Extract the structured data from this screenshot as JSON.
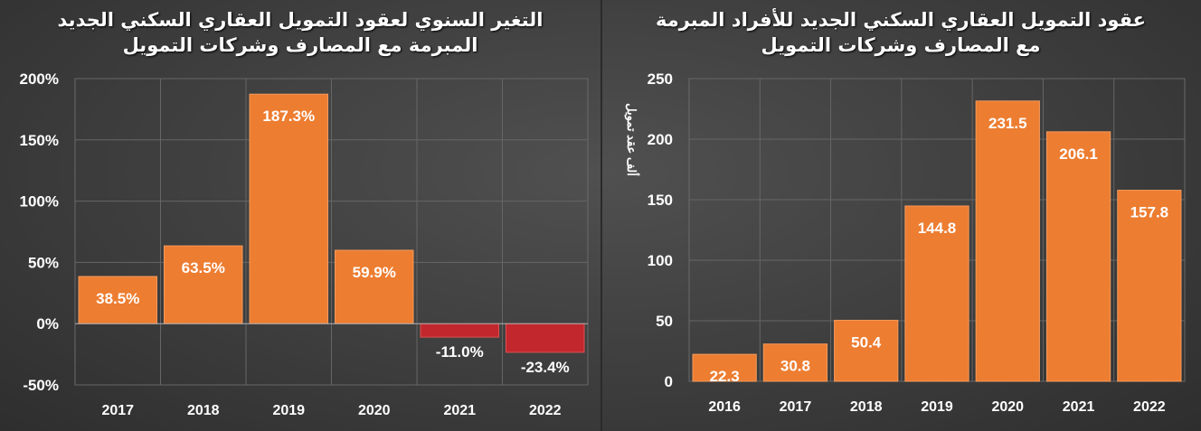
{
  "chart_data": [
    {
      "type": "bar",
      "title": "التغير السنوي لعقود التمويل العقاري السكني الجديد المبرمة مع المصارف وشركات التمويل",
      "title_lines": [
        "التغير السنوي لعقود التمويل العقاري السكني الجديد",
        "المبرمة مع المصارف وشركات التمويل"
      ],
      "categories": [
        "2017",
        "2018",
        "2019",
        "2020",
        "2021",
        "2022"
      ],
      "values": [
        38.5,
        63.5,
        187.3,
        59.9,
        -11.0,
        -23.4
      ],
      "data_labels": [
        "38.5%",
        "63.5%",
        "187.3%",
        "59.9%",
        "-11.0%",
        "-23.4%"
      ],
      "ylim": [
        -50,
        200
      ],
      "yticks": [
        "-50%",
        "0%",
        "50%",
        "100%",
        "150%",
        "200%"
      ],
      "xlabel": "",
      "ylabel": "",
      "grid": true,
      "colors": {
        "positive": "#ed7d31",
        "negative": "#c1272d"
      }
    },
    {
      "type": "bar",
      "title": "عقود التمويل العقاري السكني الجديد للأفراد المبرمة مع المصارف وشركات التمويل",
      "title_lines": [
        "عقود التمويل العقاري السكني الجديد للأفراد المبرمة",
        "مع المصارف وشركات التمويل"
      ],
      "categories": [
        "2016",
        "2017",
        "2018",
        "2019",
        "2020",
        "2021",
        "2022"
      ],
      "values": [
        22.3,
        30.8,
        50.4,
        144.8,
        231.5,
        206.1,
        157.8
      ],
      "data_labels": [
        "22.3",
        "30.8",
        "50.4",
        "144.8",
        "231.5",
        "206.1",
        "157.8"
      ],
      "ylim": [
        0,
        250
      ],
      "yticks": [
        "0",
        "50",
        "100",
        "150",
        "200",
        "250"
      ],
      "xlabel": "",
      "ylabel": "ألف عقد تمويل",
      "grid": true,
      "colors": {
        "positive": "#ed7d31"
      }
    }
  ]
}
